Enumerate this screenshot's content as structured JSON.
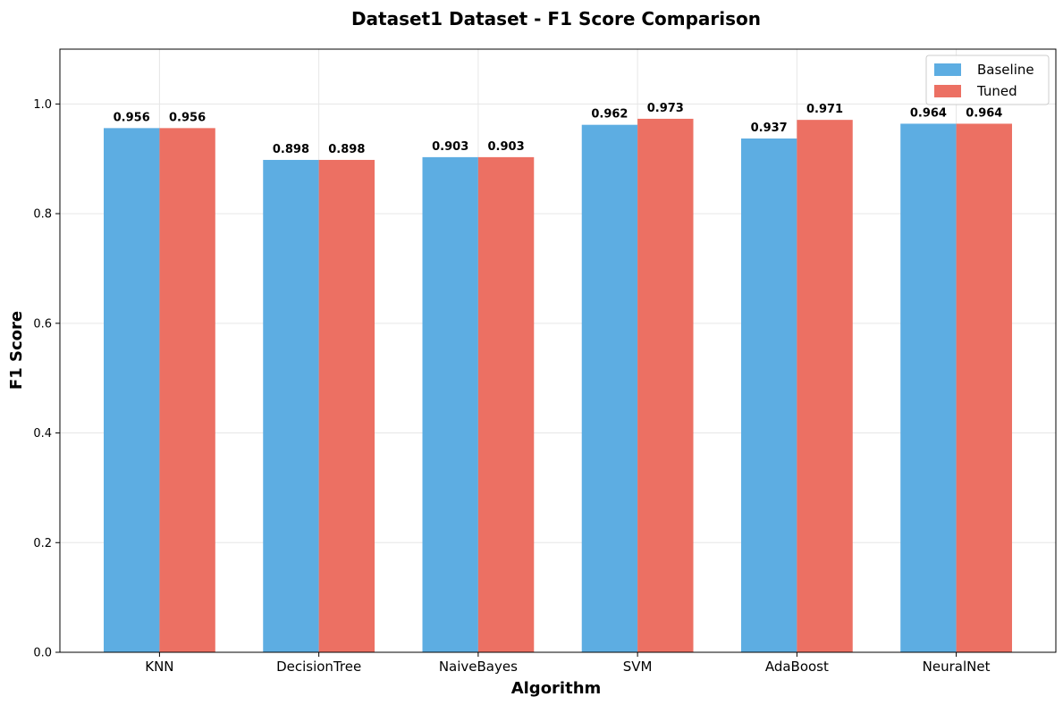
{
  "chart_data": {
    "type": "bar",
    "title": "Dataset1 Dataset - F1 Score Comparison",
    "xlabel": "Algorithm",
    "ylabel": "F1 Score",
    "categories": [
      "KNN",
      "DecisionTree",
      "NaiveBayes",
      "SVM",
      "AdaBoost",
      "NeuralNet"
    ],
    "series": [
      {
        "name": "Baseline",
        "color": "#5dade2",
        "values": [
          0.956,
          0.898,
          0.903,
          0.962,
          0.937,
          0.964
        ],
        "labels": [
          "0.956",
          "0.898",
          "0.903",
          "0.962",
          "0.937",
          "0.964"
        ]
      },
      {
        "name": "Tuned",
        "color": "#ec7063",
        "values": [
          0.956,
          0.898,
          0.903,
          0.973,
          0.971,
          0.964
        ],
        "labels": [
          "0.956",
          "0.898",
          "0.903",
          "0.973",
          "0.971",
          "0.964"
        ]
      }
    ],
    "ylim": [
      0,
      1.1
    ],
    "yticks": [
      0.0,
      0.2,
      0.4,
      0.6,
      0.8,
      1.0
    ],
    "ytick_labels": [
      "0.0",
      "0.2",
      "0.4",
      "0.6",
      "0.8",
      "1.0"
    ],
    "grid": true,
    "legend_position": "top-right"
  }
}
